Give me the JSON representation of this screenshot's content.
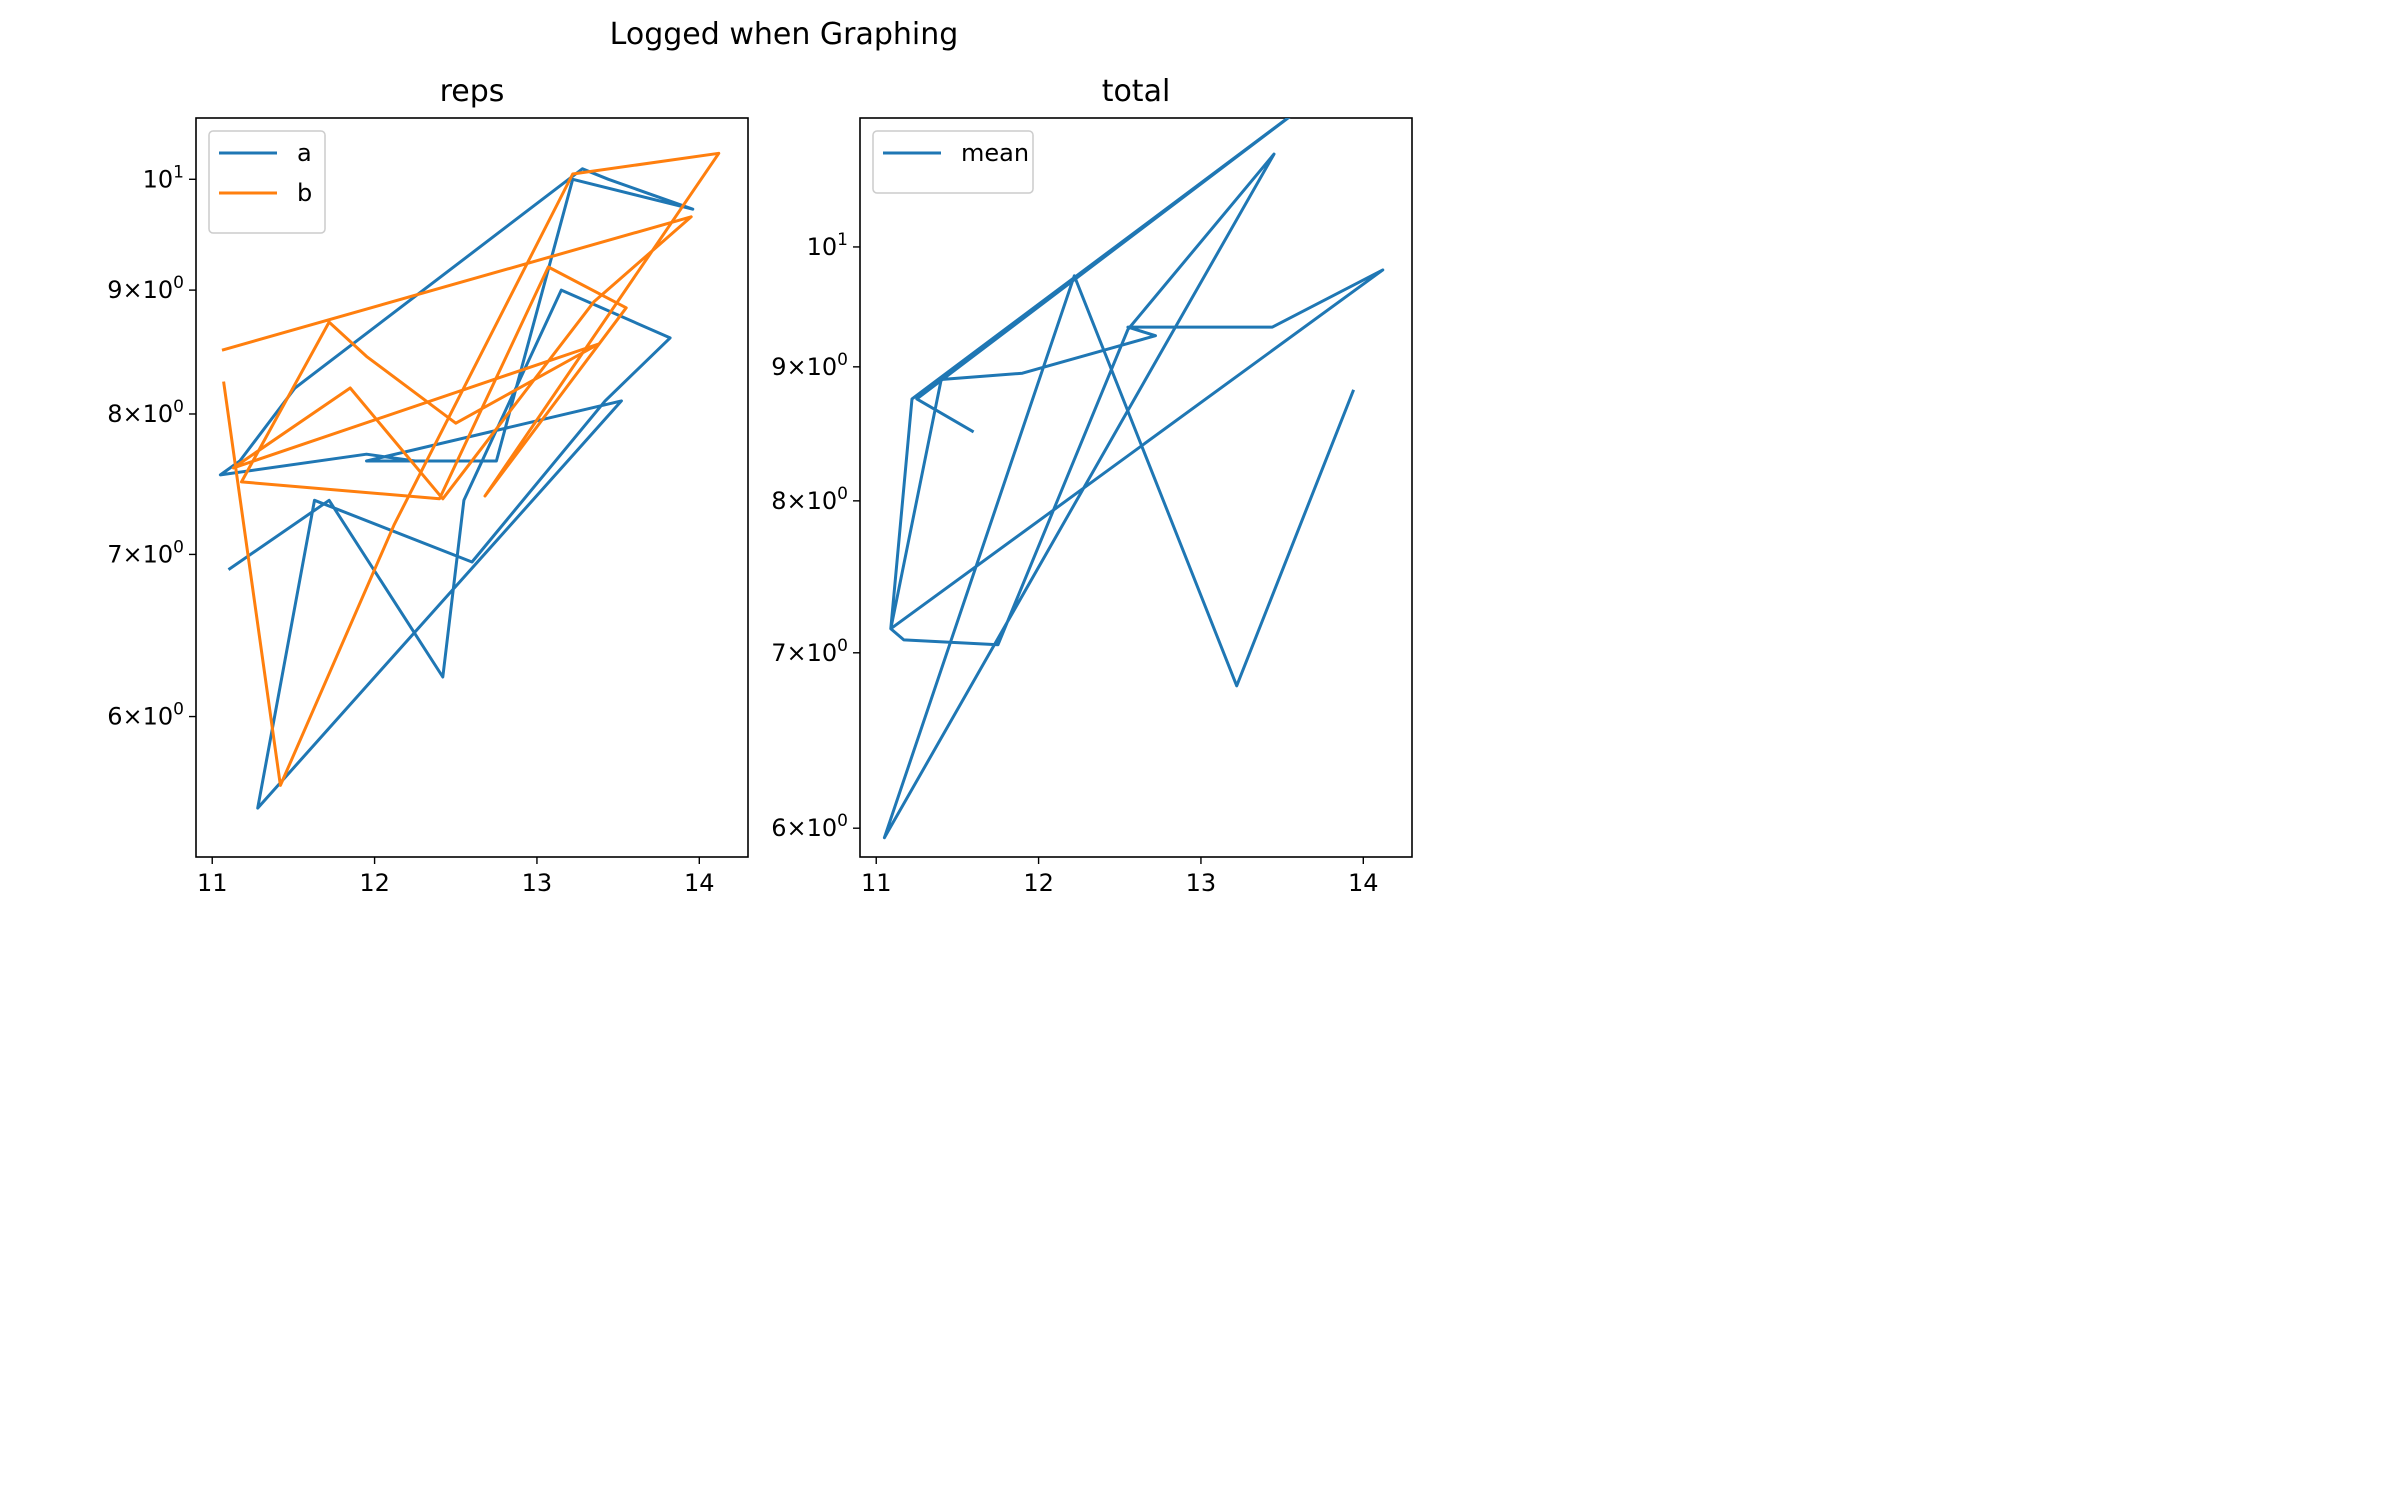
{
  "figure": {
    "suptitle": "Logged when Graphing"
  },
  "chart_data": [
    {
      "type": "line",
      "title": "reps",
      "xlabel": "",
      "ylabel": "",
      "yscale": "log",
      "xlim": [
        10.9,
        14.3
      ],
      "ylim": [
        5.25,
        10.6
      ],
      "xticks": [
        11,
        12,
        13,
        14
      ],
      "xtick_labels": [
        "11",
        "12",
        "13",
        "14"
      ],
      "yticks": [
        6,
        7,
        8,
        9,
        10
      ],
      "ytick_labels": [
        {
          "mantissa": "6",
          "exponent": "0"
        },
        {
          "mantissa": "7",
          "exponent": "0"
        },
        {
          "mantissa": "8",
          "exponent": "0"
        },
        {
          "mantissa": "9",
          "exponent": "0"
        },
        {
          "mantissa": "10",
          "exponent": "1"
        }
      ],
      "legend": {
        "position": "upper left"
      },
      "grid": false,
      "series": [
        {
          "name": "a",
          "color": "#1f77b4",
          "x": [
            11.1,
            11.72,
            12.42,
            12.55,
            13.15,
            13.82,
            13.42,
            12.6,
            11.63,
            11.28,
            13.52,
            11.95,
            12.28,
            12.75,
            13.22,
            13.96,
            13.44,
            13.28,
            11.51,
            11.17,
            11.05,
            11.95,
            12.25
          ],
          "y": [
            6.9,
            7.37,
            6.23,
            7.37,
            9.0,
            8.6,
            8.1,
            6.95,
            7.37,
            5.5,
            8.1,
            7.65,
            7.65,
            7.65,
            10.0,
            9.72,
            10.0,
            10.1,
            8.2,
            7.65,
            7.55,
            7.7,
            7.65
          ]
        },
        {
          "name": "b",
          "color": "#ff7f0e",
          "x": [
            11.07,
            11.42,
            12.12,
            13.22,
            14.12,
            12.68,
            13.55,
            13.07,
            12.4,
            11.18,
            11.72,
            11.95,
            12.5,
            13.38,
            11.13,
            11.85,
            12.42,
            13.35,
            13.95,
            11.06
          ],
          "y": [
            8.25,
            5.62,
            7.2,
            10.05,
            10.25,
            7.4,
            8.85,
            9.2,
            7.38,
            7.5,
            8.73,
            8.45,
            7.93,
            8.55,
            7.6,
            8.2,
            7.38,
            8.9,
            9.65,
            8.5
          ]
        }
      ]
    },
    {
      "type": "line",
      "title": "total",
      "xlabel": "",
      "ylabel": "",
      "yscale": "log",
      "xlim": [
        10.9,
        14.3
      ],
      "ylim": [
        5.85,
        11.2
      ],
      "xticks": [
        11,
        12,
        13,
        14
      ],
      "xtick_labels": [
        "11",
        "12",
        "13",
        "14"
      ],
      "yticks": [
        6,
        7,
        8,
        9,
        10
      ],
      "ytick_labels": [
        {
          "mantissa": "6",
          "exponent": "0"
        },
        {
          "mantissa": "7",
          "exponent": "0"
        },
        {
          "mantissa": "8",
          "exponent": "0"
        },
        {
          "mantissa": "9",
          "exponent": "0"
        },
        {
          "mantissa": "10",
          "exponent": "1"
        }
      ],
      "legend": {
        "position": "upper left"
      },
      "grid": false,
      "series": [
        {
          "name": "mean",
          "color": "#1f77b4",
          "x": [
            13.94,
            13.22,
            12.22,
            11.05,
            13.45,
            12.55,
            11.75,
            11.17,
            11.09,
            11.4,
            11.9,
            12.72,
            12.55,
            13.44,
            14.12,
            11.09,
            11.22,
            13.7,
            11.25,
            11.6
          ],
          "y": [
            8.82,
            6.8,
            9.75,
            5.95,
            10.85,
            9.3,
            7.05,
            7.08,
            7.15,
            8.9,
            8.95,
            9.25,
            9.32,
            9.32,
            9.8,
            7.15,
            8.75,
            11.4,
            8.75,
            8.5
          ]
        }
      ]
    }
  ]
}
